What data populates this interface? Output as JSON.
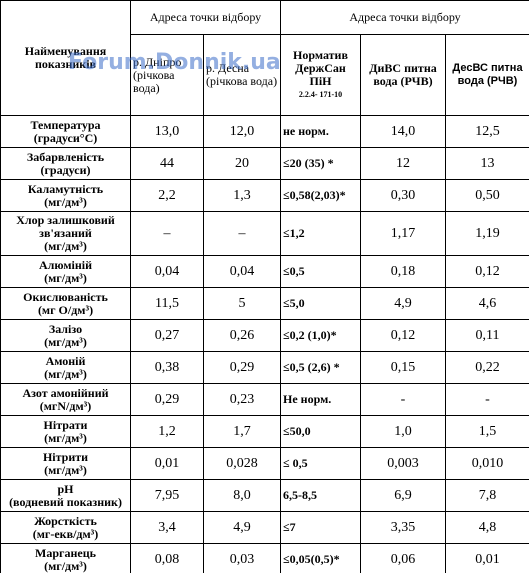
{
  "table": {
    "header": {
      "name": "Найменування показників",
      "group1": "Адреса точки відбору",
      "group2": "Адреса точки відбору",
      "columns": [
        "р. Дніпро (річкова вода)",
        "р. Десна (річкова вода)",
        "Норматив ДержСан ПіН",
        "ДиВС питна вода (РЧВ)",
        "ДесВС питна вода (РЧВ)"
      ],
      "norm_code": "2.2.4- 171-10"
    },
    "rows": [
      [
        "Температура",
        "(градуси°С)",
        "13,0",
        "12,0",
        "не норм.",
        "14,0",
        "12,5"
      ],
      [
        "Забарвленість",
        "(градуси)",
        "44",
        "20",
        "≤20 (35) *",
        "12",
        "13"
      ],
      [
        "Каламутність",
        "(мг/дм³)",
        "2,2",
        "1,3",
        "≤0,58(2,03)*",
        "0,30",
        "0,50"
      ],
      [
        "Хлор залишковий зв'язаний",
        "(мг/дм³)",
        "–",
        "–",
        "≤1,2",
        "1,17",
        "1,19"
      ],
      [
        "Алюміній",
        "(мг/дм³)",
        "0,04",
        "0,04",
        "≤0,5",
        "0,18",
        "0,12"
      ],
      [
        "Окислюваність",
        "(мг О/дм³)",
        "11,5",
        "5",
        "≤5,0",
        "4,9",
        "4,6"
      ],
      [
        "Залізо",
        "(мг/дм³)",
        "0,27",
        "0,26",
        "≤0,2 (1,0)*",
        "0,12",
        "0,11"
      ],
      [
        "Амоній",
        "(мг/дм³)",
        "0,38",
        "0,29",
        "≤0,5 (2,6) *",
        "0,15",
        "0,22"
      ],
      [
        "Азот амонійний",
        "(мгN/дм³)",
        "0,29",
        "0,23",
        "Не норм.",
        "-",
        "-"
      ],
      [
        "Нітрати",
        "(мг/дм³)",
        "1,2",
        "1,7",
        "≤50,0",
        "1,0",
        "1,5"
      ],
      [
        "Нітрити",
        "(мг/дм³)",
        "0,01",
        "0,028",
        "≤ 0,5",
        "0,003",
        "0,010"
      ],
      [
        "pH",
        "(водневий показник)",
        "7,95",
        "8,0",
        "6,5-8,5",
        "6,9",
        "7,8"
      ],
      [
        "Жорсткість",
        "(мг-екв/дм³)",
        "3,4",
        "4,9",
        "≤7",
        "3,35",
        "4,8"
      ],
      [
        "Марганець",
        "(мг/дм³)",
        "0,08",
        "0,03",
        "≤0,05(0,5)*",
        "0,06",
        "0,01"
      ]
    ]
  },
  "watermark": "Forum.Donnik.ua"
}
